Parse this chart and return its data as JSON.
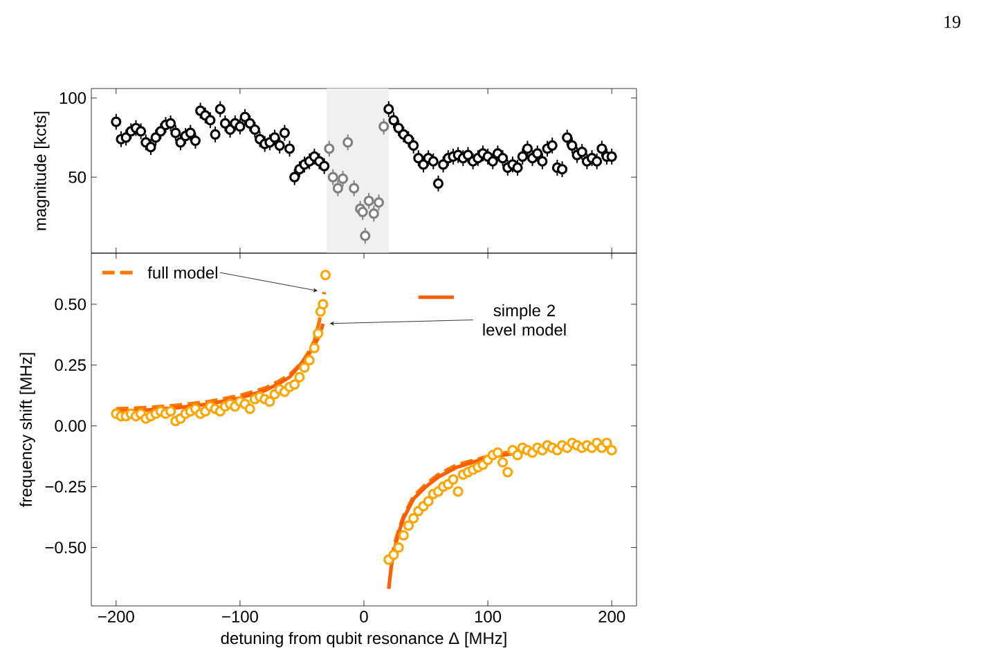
{
  "chart_data": [
    {
      "type": "scatter",
      "ylabel": "magnitude [kcts]",
      "xlim": [
        -220,
        220
      ],
      "ylim": [
        2,
        106
      ],
      "xticks": [
        -200,
        -100,
        0,
        100,
        200
      ],
      "yticks": [
        50,
        100
      ],
      "tick_labels": "y",
      "marker": "circle",
      "annotations": [
        "19"
      ],
      "bands": [
        {
          "axis": "x",
          "from": -30,
          "to": 20,
          "color": "#f0f0f0"
        }
      ],
      "series": [
        {
          "color": "#000000",
          "x": [
            -200,
            -196,
            -192,
            -188,
            -184,
            -180,
            -176,
            -172,
            -168,
            -164,
            -160,
            -156,
            -152,
            -148,
            -144,
            -140,
            -136,
            -132,
            -128,
            -124,
            -120,
            -116,
            -112,
            -108,
            -104,
            -100,
            -96,
            -92,
            -88,
            -84,
            -80,
            -76,
            -72,
            -68,
            -64,
            -60,
            -56,
            -52,
            -48,
            -44,
            -40,
            -36,
            -32,
            20,
            24,
            28,
            32,
            36,
            40,
            44,
            48,
            52,
            56,
            60,
            64,
            68,
            72,
            76,
            80,
            84,
            88,
            92,
            96,
            100,
            104,
            108,
            112,
            116,
            120,
            124,
            128,
            132,
            136,
            140,
            144,
            148,
            152,
            156,
            160,
            164,
            168,
            172,
            176,
            180,
            184,
            188,
            192,
            196,
            200
          ],
          "values": [
            85,
            74,
            75,
            79,
            81,
            79,
            72,
            69,
            75,
            79,
            83,
            84,
            78,
            72,
            76,
            78,
            73,
            92,
            89,
            86,
            77,
            93,
            84,
            80,
            84,
            82,
            88,
            84,
            80,
            74,
            71,
            72,
            75,
            70,
            78,
            68,
            50,
            55,
            58,
            60,
            63,
            60,
            57,
            93,
            86,
            81,
            77,
            74,
            70,
            62,
            58,
            62,
            60,
            46,
            58,
            62,
            63,
            64,
            62,
            64,
            60,
            62,
            65,
            63,
            60,
            65,
            62,
            56,
            58,
            56,
            63,
            68,
            62,
            65,
            60,
            68,
            70,
            56,
            55,
            75,
            70,
            64,
            66,
            60,
            62,
            60,
            68,
            63,
            63
          ],
          "errors": [
            5,
            5,
            5,
            5,
            5,
            5,
            5,
            5,
            5,
            5,
            5,
            5,
            5,
            5,
            5,
            5,
            5,
            5,
            5,
            5,
            5,
            5,
            5,
            5,
            5,
            5,
            5,
            5,
            5,
            5,
            5,
            5,
            5,
            5,
            5,
            5,
            5,
            5,
            5,
            5,
            5,
            5,
            5,
            5,
            5,
            5,
            5,
            5,
            5,
            5,
            5,
            5,
            5,
            5,
            5,
            5,
            5,
            5,
            5,
            5,
            5,
            5,
            5,
            5,
            5,
            5,
            5,
            5,
            5,
            5,
            5,
            5,
            5,
            5,
            5,
            5,
            5,
            5,
            5,
            5,
            5,
            5,
            5,
            5,
            5,
            5,
            5,
            5,
            5
          ]
        },
        {
          "color": "#808080",
          "x": [
            -28,
            -25,
            -21,
            -17,
            -13,
            -8,
            -3,
            -1,
            1,
            4,
            8,
            12,
            16
          ],
          "values": [
            68,
            50,
            43,
            49,
            72,
            43,
            30,
            28,
            13,
            35,
            27,
            34,
            82
          ],
          "errors": [
            5,
            5,
            5,
            5,
            5,
            5,
            5,
            5,
            5,
            5,
            5,
            5,
            5
          ]
        }
      ]
    },
    {
      "type": "scatter",
      "xlabel": "detuning from qubit resonance Δ [MHz]",
      "ylabel": "frequency shift [MHz]",
      "xlim": [
        -220,
        220
      ],
      "ylim": [
        -0.74,
        0.71
      ],
      "xticks": [
        {
          "value": -200,
          "label": "−200"
        },
        {
          "value": -100,
          "label": "−100"
        },
        0,
        100,
        200
      ],
      "yticks": [
        {
          "value": -0.5,
          "label": "−0.50"
        },
        {
          "value": -0.25,
          "label": "−0.25"
        },
        {
          "value": 0,
          "label": "0.00"
        },
        {
          "value": 0.25,
          "label": "0.25"
        },
        {
          "value": 0.5,
          "label": "0.50"
        }
      ],
      "series": [
        {
          "color": "#ffa500",
          "marker": "circle",
          "x": [
            -200,
            -196,
            -192,
            -188,
            -184,
            -180,
            -176,
            -172,
            -168,
            -164,
            -160,
            -156,
            -152,
            -148,
            -144,
            -140,
            -136,
            -132,
            -128,
            -124,
            -120,
            -116,
            -112,
            -108,
            -104,
            -100,
            -96,
            -92,
            -88,
            -84,
            -80,
            -76,
            -72,
            -68,
            -64,
            -60,
            -56,
            -52,
            -48,
            -44,
            -40,
            -37,
            -35,
            -33,
            -31,
            20,
            24,
            28,
            32,
            36,
            40,
            44,
            48,
            52,
            56,
            60,
            64,
            68,
            72,
            76,
            80,
            84,
            88,
            92,
            96,
            100,
            104,
            108,
            112,
            116,
            120,
            124,
            128,
            132,
            136,
            140,
            144,
            148,
            152,
            156,
            160,
            164,
            168,
            172,
            176,
            180,
            184,
            188,
            192,
            196,
            200
          ],
          "values": [
            0.05,
            0.04,
            0.04,
            0.05,
            0.04,
            0.05,
            0.03,
            0.04,
            0.05,
            0.06,
            0.05,
            0.06,
            0.02,
            0.03,
            0.05,
            0.06,
            0.07,
            0.05,
            0.06,
            0.08,
            0.07,
            0.06,
            0.08,
            0.09,
            0.08,
            0.1,
            0.09,
            0.07,
            0.11,
            0.12,
            0.11,
            0.1,
            0.13,
            0.15,
            0.14,
            0.16,
            0.17,
            0.2,
            0.24,
            0.27,
            0.32,
            0.38,
            0.47,
            0.5,
            0.62,
            -0.55,
            -0.53,
            -0.5,
            -0.45,
            -0.41,
            -0.38,
            -0.35,
            -0.33,
            -0.31,
            -0.28,
            -0.27,
            -0.25,
            -0.24,
            -0.22,
            -0.27,
            -0.2,
            -0.19,
            -0.18,
            -0.17,
            -0.16,
            -0.14,
            -0.12,
            -0.11,
            -0.15,
            -0.19,
            -0.1,
            -0.12,
            -0.09,
            -0.1,
            -0.11,
            -0.09,
            -0.1,
            -0.08,
            -0.09,
            -0.1,
            -0.08,
            -0.09,
            -0.07,
            -0.08,
            -0.09,
            -0.08,
            -0.09,
            -0.07,
            -0.09,
            -0.07,
            -0.1
          ]
        },
        {
          "name": "full model",
          "type": "line",
          "line_style": "dashed",
          "color": "#ff7700",
          "x": [
            -200,
            -175,
            -150,
            -125,
            -100,
            -80,
            -70,
            -60,
            -50,
            -45,
            -40,
            -36,
            -32,
            0,
            22,
            25,
            28,
            32,
            36,
            40,
            50,
            60,
            75,
            100,
            125,
            150,
            175,
            200
          ],
          "values": [
            0.07,
            0.075,
            0.085,
            0.1,
            0.125,
            0.155,
            0.18,
            0.21,
            0.26,
            0.3,
            0.35,
            0.43,
            0.55,
            null,
            -0.55,
            -0.48,
            -0.43,
            -0.37,
            -0.33,
            -0.29,
            -0.24,
            -0.2,
            -0.16,
            -0.125,
            -0.1,
            -0.09,
            -0.08,
            -0.07
          ]
        },
        {
          "name": "simple 2 level model",
          "type": "line",
          "line_style": "solid",
          "color": "#ff5f00",
          "x": [
            -200,
            -175,
            -150,
            -125,
            -100,
            -80,
            -70,
            -60,
            -50,
            -45,
            -40,
            -36,
            -33,
            0,
            20,
            22,
            25,
            28,
            32,
            36,
            40,
            50,
            60,
            75,
            100,
            125,
            150,
            175,
            200
          ],
          "values": [
            0.06,
            0.065,
            0.075,
            0.09,
            0.115,
            0.145,
            0.17,
            0.2,
            0.26,
            0.29,
            0.33,
            0.37,
            0.42,
            null,
            -0.67,
            -0.58,
            -0.5,
            -0.44,
            -0.38,
            -0.34,
            -0.3,
            -0.25,
            -0.21,
            -0.17,
            -0.13,
            -0.11,
            -0.09,
            -0.08,
            -0.07
          ]
        }
      ]
    }
  ]
}
